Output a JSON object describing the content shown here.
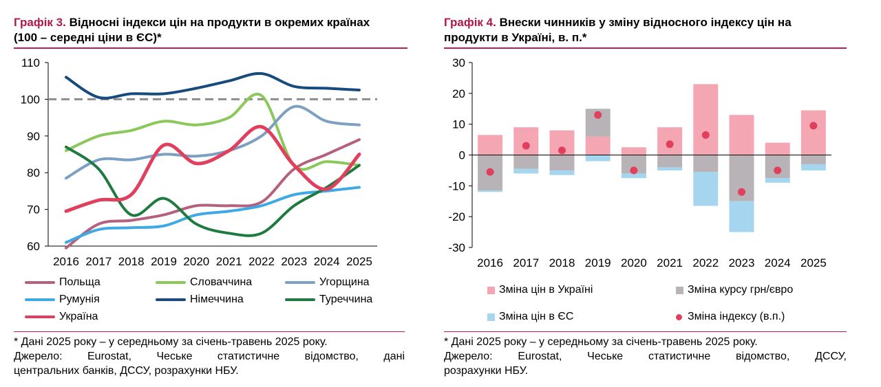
{
  "chart3": {
    "title_num": "Графік 3.",
    "title_text": "Відносні індекси цін на продукти в окремих країнах",
    "title_line2": "(100 – середні ціни в ЄС)*",
    "footnote": "* Дані 2025 року – у середньому за січень-травень 2025 року.",
    "source_line1": "Джерело: Eurostat, Чеське статистичне відомство, дані",
    "source_line2": "центральних банків, ДССУ, розрахунки НБУ."
  },
  "chart4": {
    "title_num": "Графік 4.",
    "title_text": "Внески чинників у зміну відносного індексу цін на",
    "title_line2": "продукти в Україні, в. п.*",
    "footnote": "* Дані 2025 року – у середньому за січень-травень 2025 року.",
    "source_line1": "Джерело: Eurostat, Чеське статистичне відомство, ДССУ,",
    "source_line2": "розрахунки НБУ."
  },
  "chart_data": [
    {
      "type": "line",
      "x": [
        "2016",
        "2017",
        "2018",
        "2019",
        "2020",
        "2021",
        "2022",
        "2023",
        "2024",
        "2025"
      ],
      "ylim": [
        60,
        110
      ],
      "yticks": [
        60,
        70,
        80,
        90,
        100,
        110
      ],
      "reference_line": 100,
      "grid": false,
      "series": [
        {
          "name": "Польща",
          "color": "#b5617e",
          "values": [
            59.5,
            66,
            67,
            68.5,
            71,
            71,
            72,
            81,
            85,
            89
          ]
        },
        {
          "name": "Словаччина",
          "color": "#8ac85a",
          "values": [
            86,
            90,
            91.5,
            94,
            93,
            95,
            101,
            82,
            83,
            82
          ]
        },
        {
          "name": "Угорщина",
          "color": "#7da0c2",
          "values": [
            78.5,
            83.5,
            83.5,
            85,
            84.5,
            86,
            90,
            98,
            94,
            93
          ]
        },
        {
          "name": "Румунія",
          "color": "#3fa9e3",
          "values": [
            61,
            64.5,
            65,
            65.5,
            68.5,
            69.5,
            71,
            74,
            75,
            76
          ]
        },
        {
          "name": "Німеччина",
          "color": "#174b7d",
          "values": [
            106,
            100.5,
            101.5,
            101.5,
            103,
            105,
            107,
            103.5,
            103,
            102.5
          ]
        },
        {
          "name": "Туреччина",
          "color": "#1f7a40",
          "values": [
            87,
            81,
            68.5,
            73,
            66,
            63.5,
            63.5,
            71,
            76,
            82
          ]
        },
        {
          "name": "Україна",
          "color": "#e0405e",
          "values": [
            69.5,
            72.5,
            74,
            87.5,
            82.5,
            86,
            92.5,
            82,
            75.5,
            85
          ]
        }
      ]
    },
    {
      "type": "bar",
      "stacked": true,
      "categories": [
        "2016",
        "2017",
        "2018",
        "2019",
        "2020",
        "2021",
        "2022",
        "2023",
        "2024",
        "2025"
      ],
      "ylim": [
        -30,
        30
      ],
      "yticks": [
        -30,
        -20,
        -10,
        0,
        10,
        20,
        30
      ],
      "grid": false,
      "series": [
        {
          "name": "Зміна цін в Україні",
          "kind": "bar",
          "color": "#f4a6b3",
          "values": [
            6.5,
            9,
            8,
            6,
            2.5,
            9,
            23,
            13,
            4,
            14.5
          ]
        },
        {
          "name": "Зміна курсу грн/євро",
          "kind": "bar",
          "color": "#b8b3b6",
          "values": [
            -11.5,
            -4.5,
            -5,
            9,
            -6,
            -4,
            -5.5,
            -15,
            -7.5,
            -3
          ]
        },
        {
          "name": "Зміна цін в ЄС",
          "kind": "bar",
          "color": "#a6d6ef",
          "values": [
            -0.5,
            -1.5,
            -1.5,
            -2,
            -1.5,
            -1,
            -11,
            -10,
            -1.5,
            -2
          ]
        },
        {
          "name": "Зміна індексу (в.п.)",
          "kind": "dot",
          "color": "#e0405e",
          "values": [
            -5.5,
            3,
            1.5,
            13,
            -5,
            3.5,
            6.5,
            -12,
            -5,
            9.5
          ]
        }
      ]
    }
  ]
}
